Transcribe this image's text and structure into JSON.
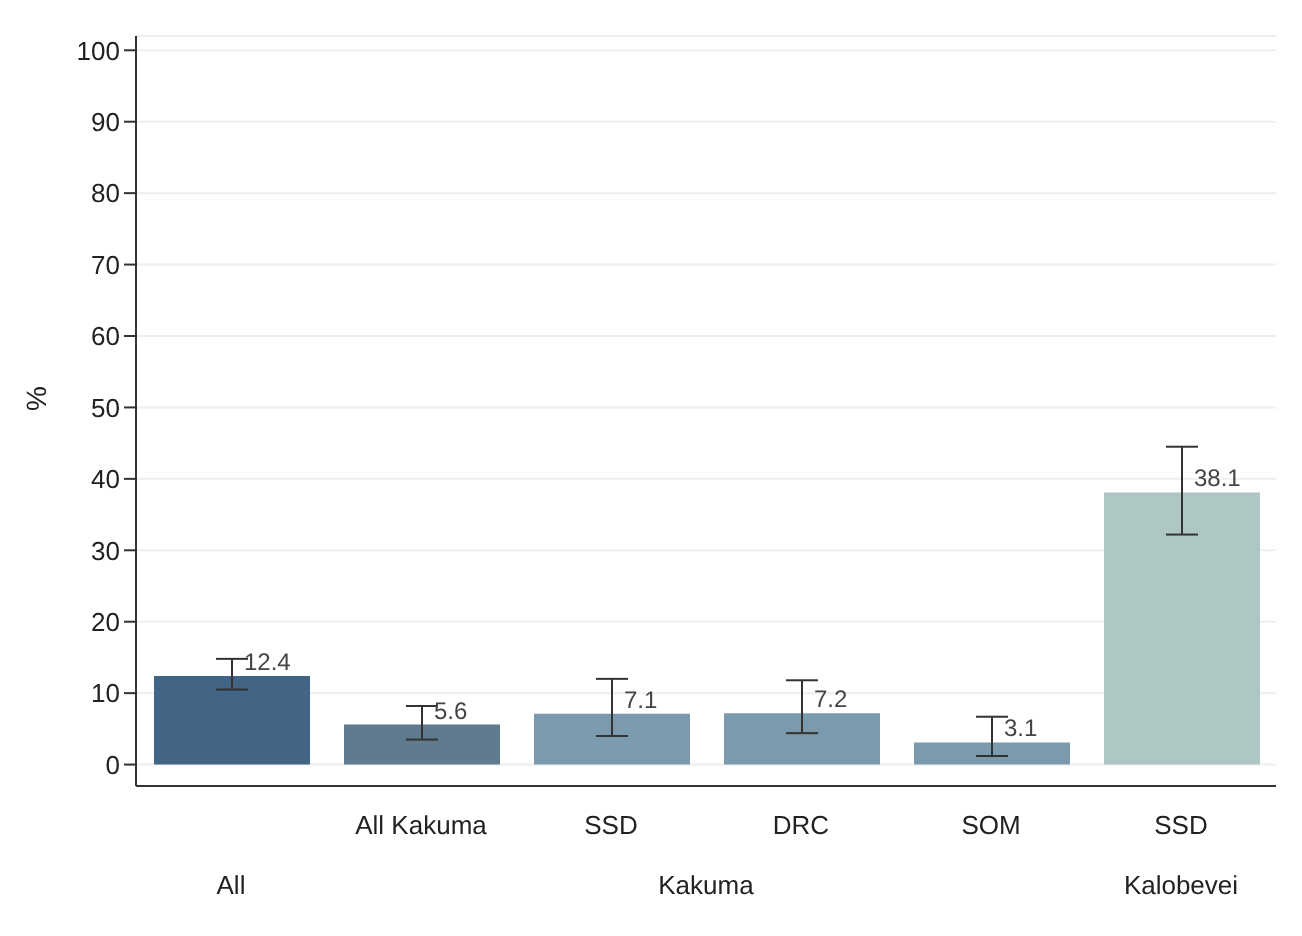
{
  "chart_data": {
    "type": "bar",
    "ylabel": "%",
    "categories": [
      null,
      "All Kakuma",
      "SSD",
      "DRC",
      "SOM",
      "SSD"
    ],
    "values": [
      12.4,
      5.6,
      7.1,
      7.2,
      3.1,
      38.1
    ],
    "colors": [
      "#426585",
      "#607a8e",
      "#7b9aae",
      "#7b9aae",
      "#7b9aae",
      "#aec6c4"
    ],
    "errors": [
      [
        10.5,
        14.8
      ],
      [
        3.5,
        8.2
      ],
      [
        4.0,
        12.0
      ],
      [
        4.4,
        11.8
      ],
      [
        1.2,
        6.7
      ],
      [
        32.2,
        44.5
      ]
    ],
    "data_labels": true,
    "annotations": [
      "All",
      "Kakuma",
      "Kalobevei"
    ],
    "ylim": [
      -3,
      102
    ],
    "yticks": [
      0,
      10,
      20,
      30,
      40,
      50,
      60,
      70,
      80,
      90,
      100
    ],
    "grid": "y"
  }
}
